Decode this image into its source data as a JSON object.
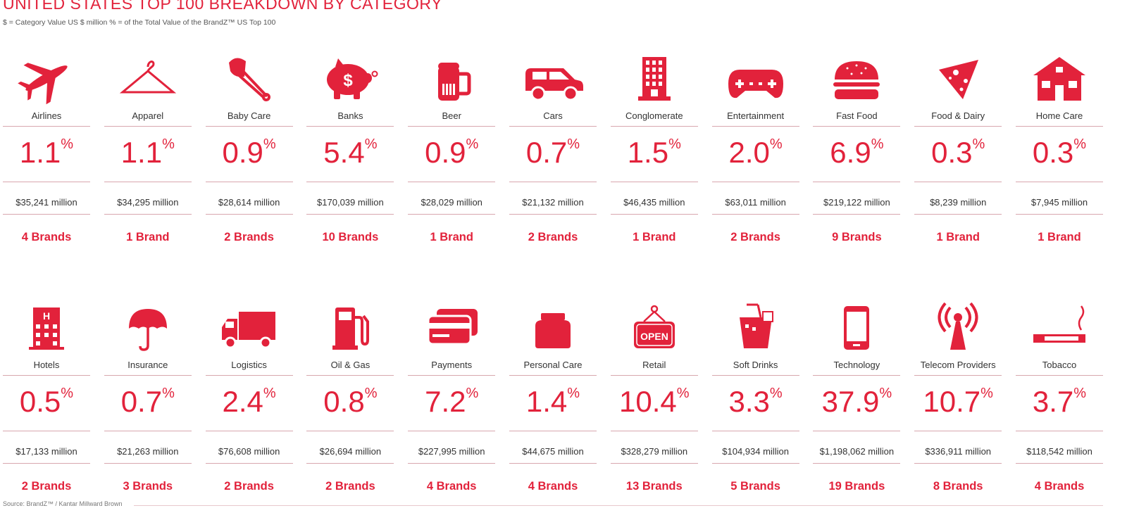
{
  "title": "UNITED STATES TOP 100 BREAKDOWN BY CATEGORY",
  "subtitle": "$ = Category Value US $ million  % = of the Total Value of the BrandZ™ US Top 100",
  "source": "Source: BrandZ™ / Kantar Millward Brown",
  "accent_color": "#e2223b",
  "percent_sign": "%",
  "rows": [
    [
      {
        "name": "Airlines",
        "percent": "1.1",
        "value": "$35,241 million",
        "brands": "4 Brands",
        "icon": "airplane-icon"
      },
      {
        "name": "Apparel",
        "percent": "1.1",
        "value": "$34,295 million",
        "brands": "1 Brand",
        "icon": "hanger-icon"
      },
      {
        "name": "Baby Care",
        "percent": "0.9",
        "value": "$28,614 million",
        "brands": "2 Brands",
        "icon": "safety-pin-icon"
      },
      {
        "name": "Banks",
        "percent": "5.4",
        "value": "$170,039 million",
        "brands": "10 Brands",
        "icon": "piggy-bank-icon"
      },
      {
        "name": "Beer",
        "percent": "0.9",
        "value": "$28,029 million",
        "brands": "1 Brand",
        "icon": "beer-mug-icon"
      },
      {
        "name": "Cars",
        "percent": "0.7",
        "value": "$21,132 million",
        "brands": "2 Brands",
        "icon": "car-icon"
      },
      {
        "name": "Conglomerate",
        "percent": "1.5",
        "value": "$46,435 million",
        "brands": "1 Brand",
        "icon": "office-building-icon"
      },
      {
        "name": "Entertainment",
        "percent": "2.0",
        "value": "$63,011 million",
        "brands": "2 Brands",
        "icon": "game-controller-icon"
      },
      {
        "name": "Fast Food",
        "percent": "6.9",
        "value": "$219,122 million",
        "brands": "9 Brands",
        "icon": "burger-icon"
      },
      {
        "name": "Food & Dairy",
        "percent": "0.3",
        "value": "$8,239 million",
        "brands": "1 Brand",
        "icon": "cheese-wedge-icon"
      },
      {
        "name": "Home Care",
        "percent": "0.3",
        "value": "$7,945 million",
        "brands": "1 Brand",
        "icon": "house-icon"
      }
    ],
    [
      {
        "name": "Hotels",
        "percent": "0.5",
        "value": "$17,133 million",
        "brands": "2 Brands",
        "icon": "hotel-icon"
      },
      {
        "name": "Insurance",
        "percent": "0.7",
        "value": "$21,263 million",
        "brands": "3 Brands",
        "icon": "umbrella-icon"
      },
      {
        "name": "Logistics",
        "percent": "2.4",
        "value": "$76,608 million",
        "brands": "2 Brands",
        "icon": "truck-icon"
      },
      {
        "name": "Oil & Gas",
        "percent": "0.8",
        "value": "$26,694 million",
        "brands": "2 Brands",
        "icon": "fuel-pump-icon"
      },
      {
        "name": "Payments",
        "percent": "7.2",
        "value": "$227,995 million",
        "brands": "4 Brands",
        "icon": "credit-cards-icon"
      },
      {
        "name": "Personal Care",
        "percent": "1.4",
        "value": "$44,675 million",
        "brands": "4 Brands",
        "icon": "jar-icon"
      },
      {
        "name": "Retail",
        "percent": "10.4",
        "value": "$328,279 million",
        "brands": "13 Brands",
        "icon": "open-sign-icon",
        "icon_text": "OPEN"
      },
      {
        "name": "Soft Drinks",
        "percent": "3.3",
        "value": "$104,934 million",
        "brands": "5 Brands",
        "icon": "drink-cup-icon"
      },
      {
        "name": "Technology",
        "percent": "37.9",
        "value": "$1,198,062 million",
        "brands": "19 Brands",
        "icon": "smartphone-icon"
      },
      {
        "name": "Telecom Providers",
        "percent": "10.7",
        "value": "$336,911 million",
        "brands": "8 Brands",
        "icon": "antenna-icon"
      },
      {
        "name": "Tobacco",
        "percent": "3.7",
        "value": "$118,542 million",
        "brands": "4 Brands",
        "icon": "cigarette-icon"
      }
    ]
  ]
}
